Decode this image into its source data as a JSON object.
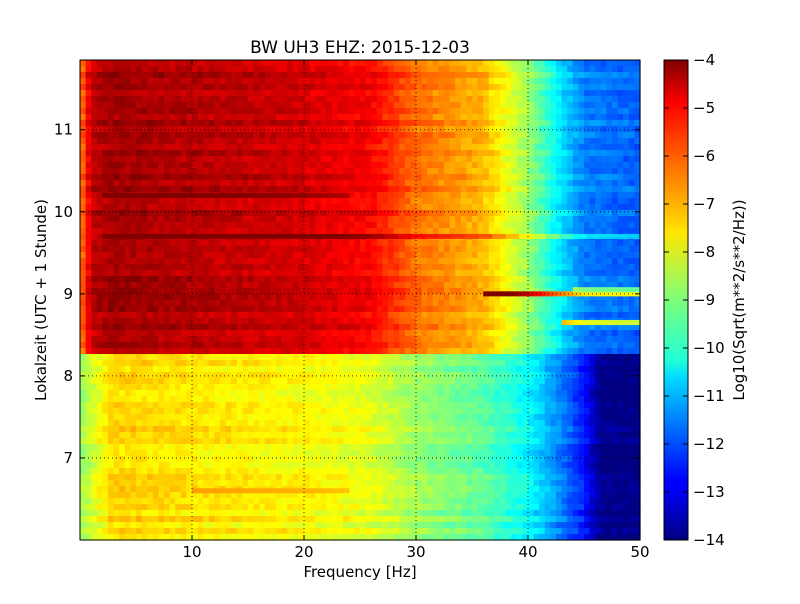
{
  "chart_data": {
    "type": "heatmap",
    "title": "BW UH3 EHZ: 2015-12-03",
    "xlabel": "Frequency [Hz]",
    "ylabel": "Lokalzeit (UTC + 1 Stunde)",
    "xlim": [
      0,
      50
    ],
    "ylim": [
      11.85,
      6.0
    ],
    "x_ticks": [
      10,
      20,
      30,
      40,
      50
    ],
    "y_ticks": [
      7,
      8,
      9,
      10,
      11
    ],
    "grid": true,
    "colormap": "jet",
    "colorbar": {
      "label": "Log10(Sqrt(m**2/s**2/Hz))",
      "range": [
        -14,
        -4
      ],
      "ticks": [
        -4,
        -5,
        -6,
        -7,
        -8,
        -9,
        -10,
        -11,
        -12,
        -13,
        -14
      ]
    },
    "regions": [
      {
        "time_range": [
          6.0,
          8.25
        ],
        "profile": [
          {
            "freq": 0,
            "value": -8.8
          },
          {
            "freq": 1,
            "value": -8.2
          },
          {
            "freq": 3,
            "value": -7.3
          },
          {
            "freq": 10,
            "value": -7.5
          },
          {
            "freq": 20,
            "value": -7.7
          },
          {
            "freq": 26,
            "value": -8.0
          },
          {
            "freq": 30,
            "value": -8.7
          },
          {
            "freq": 36,
            "value": -9.3
          },
          {
            "freq": 40,
            "value": -10.2
          },
          {
            "freq": 43,
            "value": -11.5
          },
          {
            "freq": 45,
            "value": -12.5
          },
          {
            "freq": 46.5,
            "value": -13.9
          },
          {
            "freq": 50,
            "value": -14.0
          }
        ]
      },
      {
        "time_range": [
          8.25,
          11.85
        ],
        "profile": [
          {
            "freq": 0,
            "value": -6.6
          },
          {
            "freq": 1,
            "value": -4.6
          },
          {
            "freq": 3,
            "value": -4.3
          },
          {
            "freq": 10,
            "value": -4.5
          },
          {
            "freq": 20,
            "value": -4.8
          },
          {
            "freq": 26,
            "value": -5.2
          },
          {
            "freq": 30,
            "value": -6.3
          },
          {
            "freq": 36,
            "value": -7.0
          },
          {
            "freq": 40,
            "value": -8.7
          },
          {
            "freq": 43,
            "value": -10.5
          },
          {
            "freq": 45,
            "value": -11.5
          },
          {
            "freq": 50,
            "value": -11.8
          }
        ]
      }
    ],
    "features": [
      {
        "time": 6.6,
        "freq_range": [
          10,
          24
        ],
        "delta": 0.7
      },
      {
        "time": 8.65,
        "freq_range": [
          43,
          50
        ],
        "delta": 3.5
      },
      {
        "time": 9.0,
        "freq_range": [
          36,
          50
        ],
        "delta": 4.0
      },
      {
        "time": 9.05,
        "freq_range": [
          44,
          50
        ],
        "delta": 2.5
      },
      {
        "time": 9.7,
        "freq_range": [
          2,
          50
        ],
        "delta": 1.0
      },
      {
        "time": 10.2,
        "freq_range": [
          2,
          24
        ],
        "delta": 0.6
      }
    ]
  }
}
